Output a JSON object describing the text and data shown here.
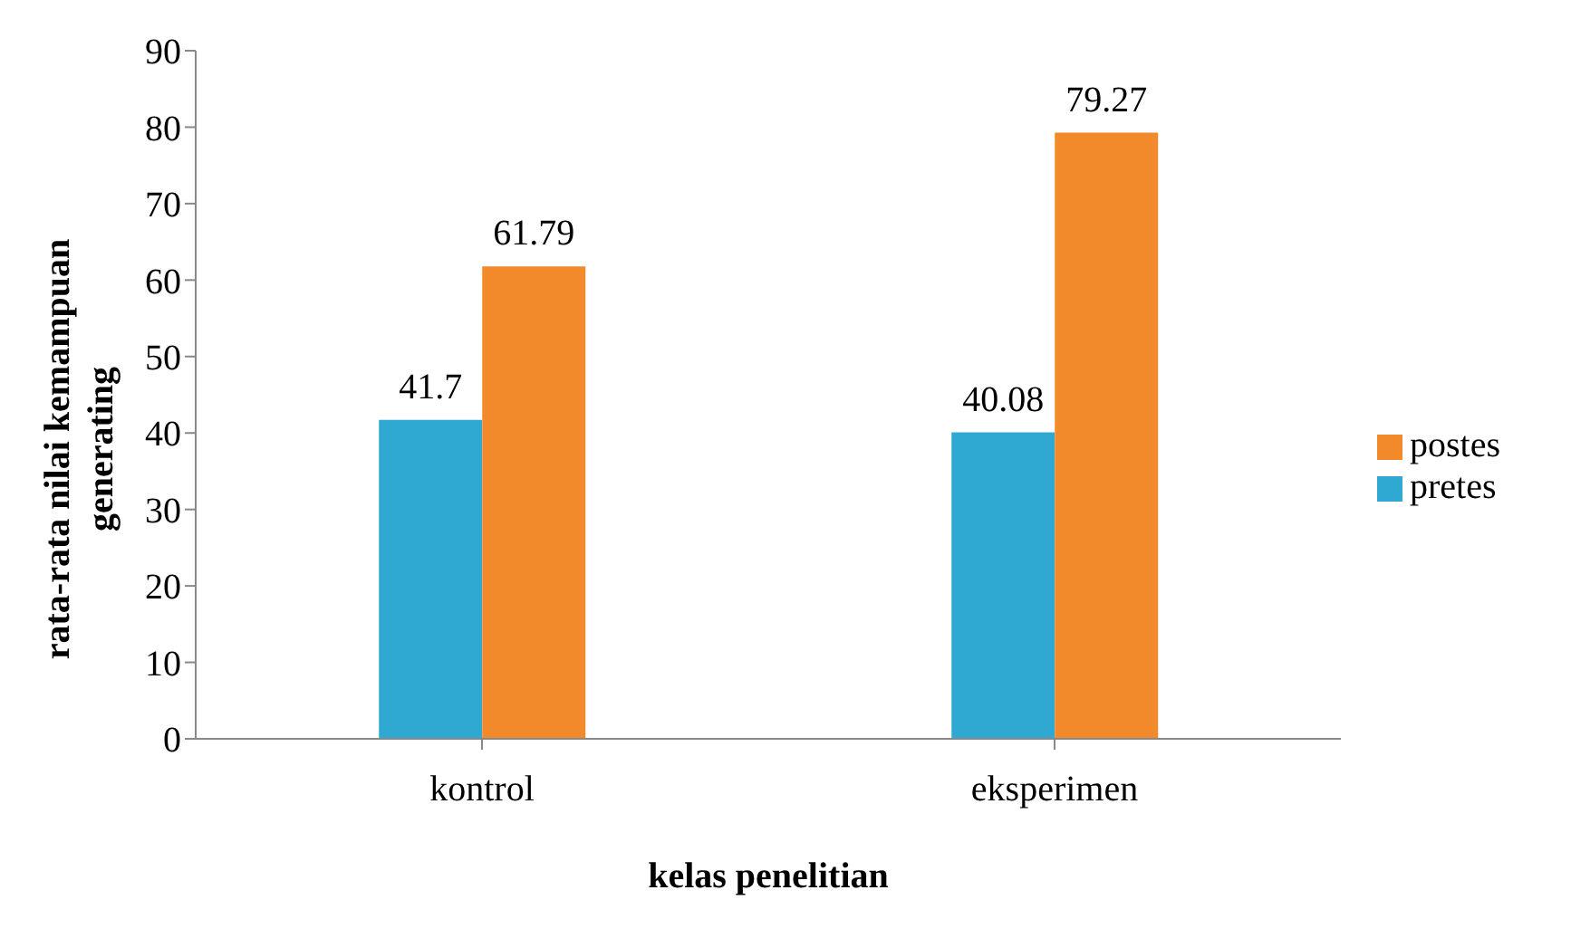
{
  "chart_data": {
    "type": "bar",
    "xlabel": "kelas penelitian",
    "ylabel": "rata-rata nilai kemampuan generating",
    "categories": [
      "kontrol",
      "eksperimen"
    ],
    "series": [
      {
        "name": "pretes",
        "color": "#2fa9d2",
        "values": [
          41.7,
          40.08
        ]
      },
      {
        "name": "postes",
        "color": "#f28a2c",
        "values": [
          61.79,
          79.27
        ]
      }
    ],
    "ylim": [
      0,
      90
    ],
    "yticks": [
      0,
      10,
      20,
      30,
      40,
      50,
      60,
      70,
      80,
      90
    ],
    "grid": false,
    "legend": "right",
    "data_labels": true
  }
}
